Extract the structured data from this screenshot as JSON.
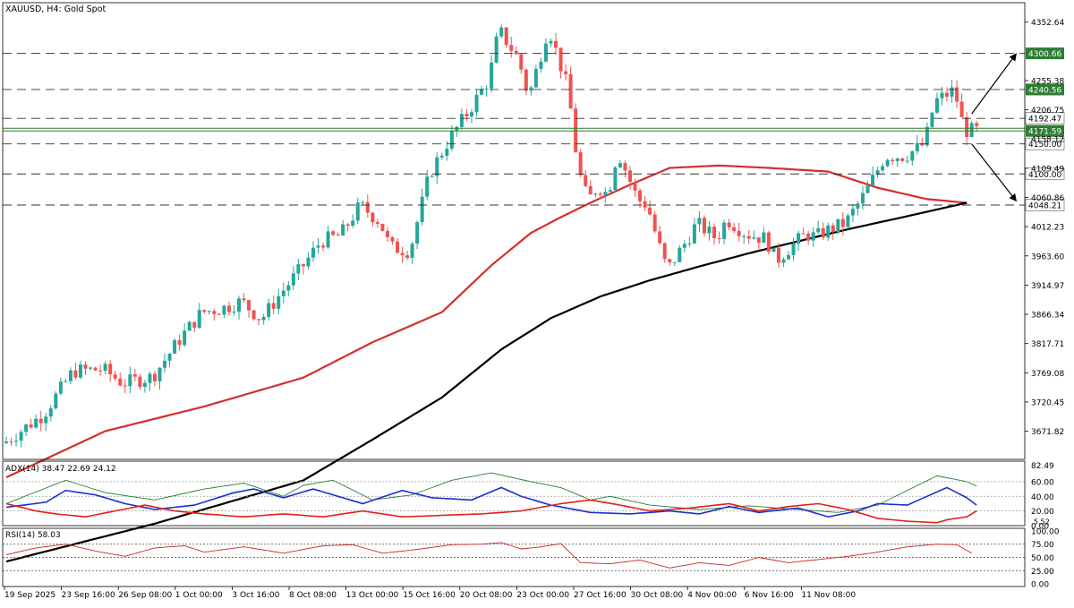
{
  "header": {
    "title": "XAUUSD, H4:  Gold Spot"
  },
  "colors": {
    "bull": "#26a69a",
    "bear": "#ef5350",
    "ma_red": "#d32f2f",
    "ma_black": "#000000",
    "level_tag": "#2e7d32",
    "adx_main": "#2e7d32",
    "di_plus": "#1b2fd0",
    "di_minus": "#e0201b",
    "rsi": "#c62828"
  },
  "chart_data": [
    {
      "type": "candlestick",
      "title": "XAUUSD, H4:  Gold Spot",
      "ylim": [
        3625,
        4385
      ],
      "x_ticks": [
        "19 Sep 2025",
        "23 Sep 16:00",
        "26 Sep 08:00",
        "1 Oct 00:00",
        "3 Oct 16:00",
        "8 Oct 08:00",
        "13 Oct 00:00",
        "15 Oct 16:00",
        "20 Oct 08:00",
        "23 Oct 00:00",
        "27 Oct 16:00",
        "30 Oct 08:00",
        "4 Nov 00:00",
        "6 Nov 16:00",
        "11 Nov 08:00"
      ],
      "y_ticks": [
        "4352.64",
        "4255.38",
        "4206.75",
        "4109.49",
        "4060.86",
        "4012.23",
        "3963.60",
        "3914.97",
        "3866.34",
        "3817.71",
        "3769.08",
        "3720.45",
        "3671.82"
      ],
      "price_path": [
        [
          0,
          3652
        ],
        [
          8,
          3700
        ],
        [
          14,
          3772
        ],
        [
          20,
          3775
        ],
        [
          24,
          3752
        ],
        [
          30,
          3762
        ],
        [
          36,
          3830
        ],
        [
          40,
          3870
        ],
        [
          44,
          3876
        ],
        [
          48,
          3888
        ],
        [
          52,
          3858
        ],
        [
          56,
          3902
        ],
        [
          60,
          3942
        ],
        [
          64,
          3988
        ],
        [
          68,
          3998
        ],
        [
          72,
          4048
        ],
        [
          76,
          4020
        ],
        [
          78,
          3978
        ],
        [
          82,
          3972
        ],
        [
          86,
          4100
        ],
        [
          90,
          4158
        ],
        [
          94,
          4206
        ],
        [
          98,
          4258
        ],
        [
          100,
          4340
        ],
        [
          104,
          4290
        ],
        [
          106,
          4228
        ],
        [
          108,
          4285
        ],
        [
          110,
          4345
        ],
        [
          114,
          4240
        ],
        [
          116,
          4108
        ],
        [
          118,
          4055
        ],
        [
          120,
          4080
        ],
        [
          122,
          4066
        ],
        [
          124,
          4138
        ],
        [
          128,
          4058
        ],
        [
          130,
          4048
        ],
        [
          132,
          3990
        ],
        [
          134,
          3940
        ],
        [
          138,
          3990
        ],
        [
          140,
          4018
        ],
        [
          144,
          3992
        ],
        [
          146,
          4025
        ],
        [
          150,
          4000
        ],
        [
          154,
          3992
        ],
        [
          156,
          3955
        ],
        [
          158,
          3972
        ],
        [
          162,
          4000
        ],
        [
          164,
          3995
        ],
        [
          166,
          4005
        ],
        [
          170,
          4018
        ],
        [
          174,
          4068
        ],
        [
          178,
          4130
        ],
        [
          182,
          4130
        ],
        [
          186,
          4150
        ],
        [
          188,
          4220
        ],
        [
          192,
          4240
        ],
        [
          194,
          4172
        ]
      ],
      "moving_averages": [
        {
          "name": "MA red",
          "color": "#d32f2f",
          "values": [
            [
              0,
              3595
            ],
            [
              20,
              3672
            ],
            [
              40,
              3713
            ],
            [
              60,
              3761
            ],
            [
              74,
              3820
            ],
            [
              88,
              3870
            ],
            [
              98,
              3948
            ],
            [
              106,
              4002
            ],
            [
              112,
              4028
            ],
            [
              118,
              4052
            ],
            [
              126,
              4082
            ],
            [
              134,
              4110
            ],
            [
              144,
              4114
            ],
            [
              154,
              4110
            ],
            [
              166,
              4104
            ],
            [
              176,
              4077
            ],
            [
              186,
              4058
            ],
            [
              194,
              4052
            ]
          ]
        },
        {
          "name": "MA black",
          "color": "#000000",
          "values": [
            [
              0,
              3455
            ],
            [
              30,
              3518
            ],
            [
              60,
              3590
            ],
            [
              74,
              3658
            ],
            [
              88,
              3728
            ],
            [
              100,
              3808
            ],
            [
              110,
              3860
            ],
            [
              120,
              3896
            ],
            [
              130,
              3923
            ],
            [
              140,
              3946
            ],
            [
              150,
              3968
            ],
            [
              160,
              3988
            ],
            [
              170,
              4008
            ],
            [
              180,
              4026
            ],
            [
              194,
              4052
            ]
          ]
        }
      ],
      "levels": [
        {
          "value": "4300.66",
          "style": "dashed",
          "tag": true
        },
        {
          "value": "4240.56",
          "style": "dashed",
          "tag": true
        },
        {
          "value": "4192.47",
          "style": "dashed",
          "tag": false
        },
        {
          "value": "4171.59",
          "style": "solid",
          "tag": true
        },
        {
          "value": "4150.00",
          "style": "dashed",
          "tag": false
        },
        {
          "value": "4100.00",
          "style": "dashed",
          "tag": false
        },
        {
          "value": "4048.21",
          "style": "dashed",
          "tag": false
        }
      ],
      "hidden_tick_fragment": "4158.12",
      "arrows": [
        {
          "from": [
            195,
            4200
          ],
          "to": [
            204,
            4300
          ]
        },
        {
          "from": [
            195,
            4150
          ],
          "to": [
            204,
            4055
          ]
        }
      ]
    },
    {
      "type": "line",
      "title": "ADX(14) 38.47 22.69 24.12",
      "ylim": [
        0,
        88
      ],
      "y_ticks": [
        "82.49",
        "60.00",
        "40.00",
        "20.00",
        "0.00"
      ],
      "y_tick_overlap": "5.52",
      "gridlines": [
        60,
        40,
        20
      ],
      "series": [
        {
          "name": "ADX",
          "color": "#2e7d32",
          "values": [
            [
              0,
              30
            ],
            [
              12,
              62
            ],
            [
              20,
              45
            ],
            [
              30,
              35
            ],
            [
              40,
              50
            ],
            [
              48,
              58
            ],
            [
              56,
              40
            ],
            [
              60,
              55
            ],
            [
              66,
              62
            ],
            [
              74,
              35
            ],
            [
              82,
              42
            ],
            [
              90,
              62
            ],
            [
              98,
              72
            ],
            [
              106,
              60
            ],
            [
              112,
              52
            ],
            [
              118,
              35
            ],
            [
              122,
              40
            ],
            [
              130,
              28
            ],
            [
              140,
              22
            ],
            [
              150,
              27
            ],
            [
              160,
              22
            ],
            [
              168,
              18
            ],
            [
              176,
              28
            ],
            [
              182,
              48
            ],
            [
              188,
              68
            ],
            [
              194,
              60
            ],
            [
              196,
              54
            ]
          ]
        },
        {
          "name": "+DI",
          "color": "#1b2fd0",
          "values": [
            [
              0,
              25
            ],
            [
              8,
              32
            ],
            [
              12,
              48
            ],
            [
              18,
              42
            ],
            [
              24,
              30
            ],
            [
              30,
              22
            ],
            [
              38,
              28
            ],
            [
              46,
              45
            ],
            [
              50,
              50
            ],
            [
              56,
              38
            ],
            [
              62,
              50
            ],
            [
              66,
              42
            ],
            [
              72,
              30
            ],
            [
              80,
              48
            ],
            [
              86,
              38
            ],
            [
              94,
              35
            ],
            [
              100,
              52
            ],
            [
              104,
              40
            ],
            [
              110,
              28
            ],
            [
              118,
              18
            ],
            [
              126,
              16
            ],
            [
              134,
              20
            ],
            [
              140,
              16
            ],
            [
              146,
              26
            ],
            [
              152,
              18
            ],
            [
              160,
              24
            ],
            [
              166,
              12
            ],
            [
              172,
              20
            ],
            [
              176,
              30
            ],
            [
              182,
              28
            ],
            [
              186,
              40
            ],
            [
              190,
              52
            ],
            [
              194,
              38
            ],
            [
              196,
              28
            ]
          ]
        },
        {
          "name": "-DI",
          "color": "#e0201b",
          "values": [
            [
              0,
              30
            ],
            [
              6,
              20
            ],
            [
              10,
              16
            ],
            [
              16,
              12
            ],
            [
              22,
              20
            ],
            [
              28,
              28
            ],
            [
              34,
              20
            ],
            [
              40,
              16
            ],
            [
              48,
              12
            ],
            [
              56,
              16
            ],
            [
              64,
              12
            ],
            [
              72,
              20
            ],
            [
              80,
              12
            ],
            [
              88,
              14
            ],
            [
              96,
              16
            ],
            [
              104,
              20
            ],
            [
              112,
              30
            ],
            [
              118,
              35
            ],
            [
              124,
              28
            ],
            [
              130,
              20
            ],
            [
              138,
              24
            ],
            [
              146,
              30
            ],
            [
              152,
              20
            ],
            [
              158,
              26
            ],
            [
              164,
              30
            ],
            [
              170,
              22
            ],
            [
              176,
              10
            ],
            [
              182,
              6
            ],
            [
              188,
              4
            ],
            [
              190,
              8
            ],
            [
              194,
              12
            ],
            [
              196,
              20
            ]
          ]
        }
      ]
    },
    {
      "type": "line",
      "title": "RSI(14) 58.03",
      "ylim": [
        -5,
        105
      ],
      "y_ticks": [
        "100.00",
        "75.00",
        "50.00",
        "25.00",
        "0.00"
      ],
      "gridlines": [
        75,
        50,
        25
      ],
      "series": [
        {
          "name": "RSI",
          "color": "#c62828",
          "values": [
            [
              0,
              55
            ],
            [
              6,
              68
            ],
            [
              12,
              75
            ],
            [
              18,
              62
            ],
            [
              24,
              52
            ],
            [
              30,
              68
            ],
            [
              36,
              72
            ],
            [
              40,
              60
            ],
            [
              48,
              70
            ],
            [
              56,
              58
            ],
            [
              64,
              72
            ],
            [
              70,
              74
            ],
            [
              76,
              58
            ],
            [
              82,
              64
            ],
            [
              90,
              74
            ],
            [
              96,
              75
            ],
            [
              100,
              78
            ],
            [
              104,
              66
            ],
            [
              108,
              70
            ],
            [
              112,
              76
            ],
            [
              116,
              40
            ],
            [
              122,
              38
            ],
            [
              128,
              45
            ],
            [
              134,
              30
            ],
            [
              140,
              40
            ],
            [
              146,
              35
            ],
            [
              152,
              50
            ],
            [
              158,
              40
            ],
            [
              164,
              46
            ],
            [
              170,
              52
            ],
            [
              176,
              60
            ],
            [
              182,
              70
            ],
            [
              188,
              75
            ],
            [
              192,
              74
            ],
            [
              195,
              58
            ]
          ]
        }
      ]
    }
  ]
}
